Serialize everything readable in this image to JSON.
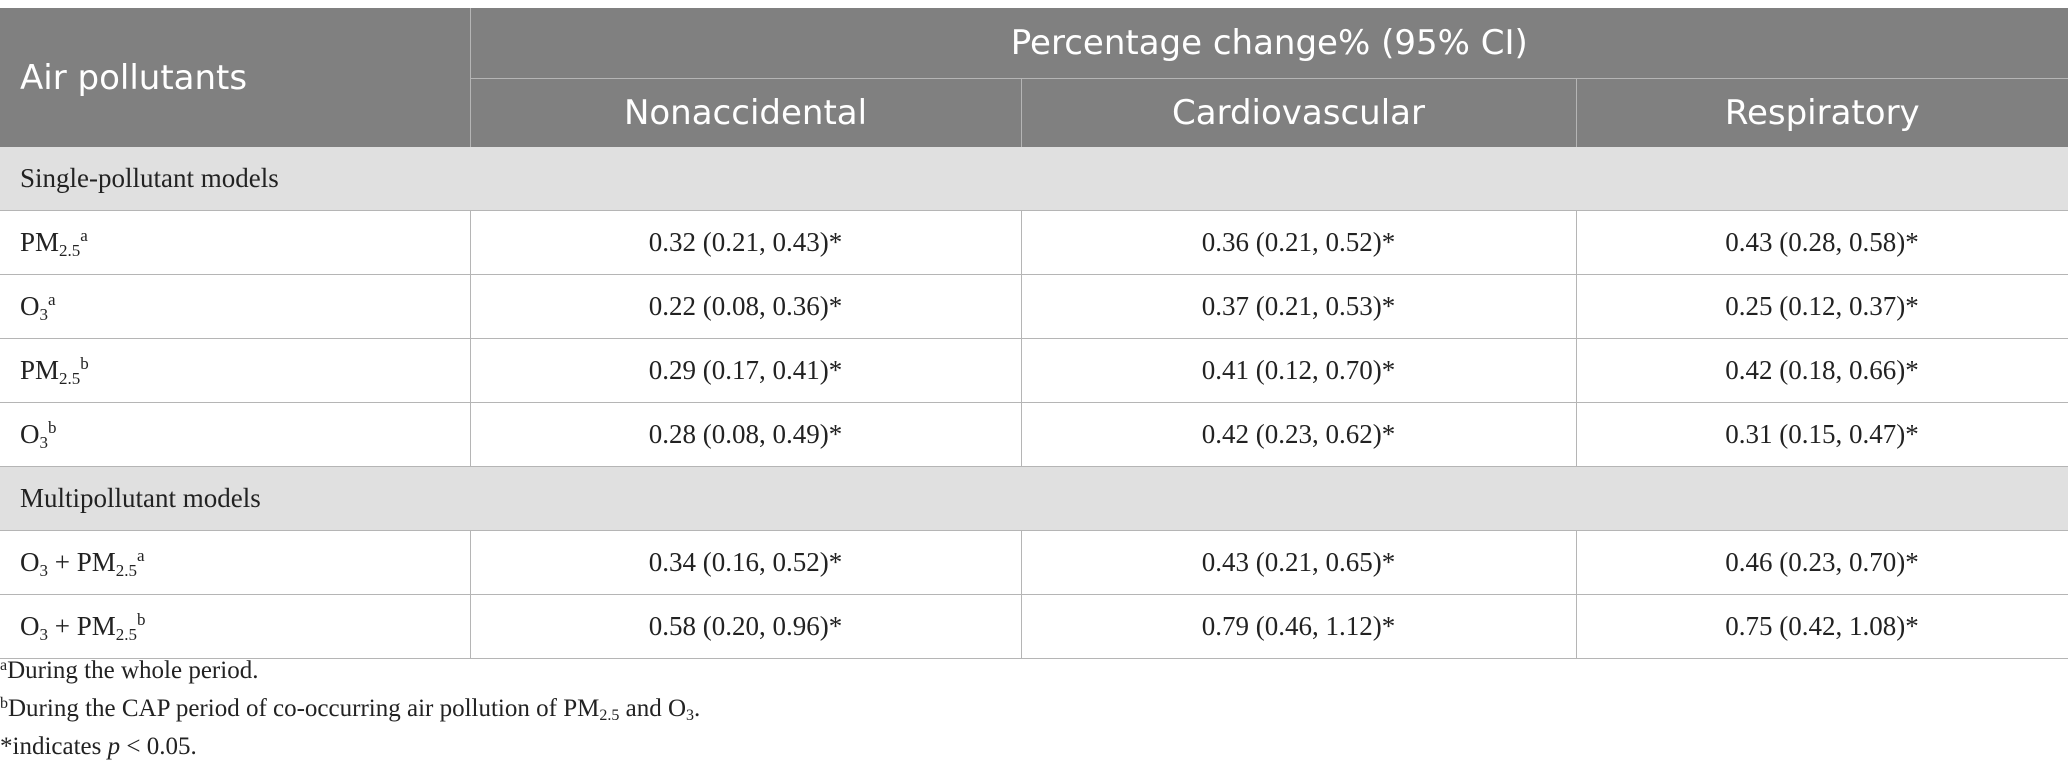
{
  "table": {
    "header": {
      "row_label": "Air pollutants",
      "group_label": "Percentage change% (95% CI)",
      "columns": [
        "Nonaccidental",
        "Cardiovascular",
        "Respiratory"
      ]
    },
    "sections": [
      {
        "title": "Single-pollutant models",
        "rows": [
          {
            "pollutant": "PM",
            "sub": "2.5",
            "sup": "a",
            "values": [
              "0.32 (0.21, 0.43)*",
              "0.36 (0.21, 0.52)*",
              "0.43 (0.28, 0.58)*"
            ]
          },
          {
            "pollutant": "O",
            "sub": "3",
            "sup": "a",
            "values": [
              "0.22 (0.08, 0.36)*",
              "0.37 (0.21, 0.53)*",
              "0.25 (0.12, 0.37)*"
            ]
          },
          {
            "pollutant": "PM",
            "sub": "2.5",
            "sup": "b",
            "values": [
              "0.29 (0.17, 0.41)*",
              "0.41 (0.12, 0.70)*",
              "0.42 (0.18, 0.66)*"
            ]
          },
          {
            "pollutant": "O",
            "sub": "3",
            "sup": "b",
            "values": [
              "0.28 (0.08, 0.49)*",
              "0.42 (0.23, 0.62)*",
              "0.31 (0.15, 0.47)*"
            ]
          }
        ]
      },
      {
        "title": "Multipollutant models",
        "rows": [
          {
            "pollutant_a": "O",
            "sub_a": "3",
            "joiner": " + ",
            "pollutant_b": "PM",
            "sub_b": "2.5",
            "sup": "a",
            "values": [
              "0.34 (0.16, 0.52)*",
              "0.43 (0.21, 0.65)*",
              "0.46 (0.23, 0.70)*"
            ]
          },
          {
            "pollutant_a": "O",
            "sub_a": "3",
            "joiner": " + ",
            "pollutant_b": "PM",
            "sub_b": "2.5",
            "sup": "b",
            "values": [
              "0.58 (0.20, 0.96)*",
              "0.79 (0.46, 1.12)*",
              "0.75 (0.42, 1.08)*"
            ]
          }
        ]
      }
    ]
  },
  "footnotes": {
    "a": {
      "mark": "a",
      "text": "During the whole period."
    },
    "b": {
      "mark": "b",
      "text_before": "During the CAP period of co-occurring air pollution of PM",
      "sub": "2.5",
      "text_mid": " and O",
      "sub2": "3",
      "text_after": "."
    },
    "star": {
      "text_before": "*indicates ",
      "italic": "p",
      "text_after": " < 0.05."
    }
  }
}
